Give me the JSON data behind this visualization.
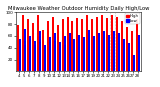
{
  "title": "Milwaukee Weather Outdoor Humidity Daily High/Low",
  "title_fontsize": 3.8,
  "high_values": [
    78,
    95,
    88,
    82,
    95,
    70,
    85,
    92,
    78,
    88,
    92,
    85,
    90,
    88,
    95,
    88,
    92,
    95,
    90,
    95,
    92,
    85,
    75,
    68,
    88
  ],
  "low_values": [
    55,
    72,
    60,
    52,
    68,
    45,
    58,
    65,
    50,
    60,
    65,
    55,
    62,
    58,
    70,
    60,
    65,
    68,
    62,
    68,
    65,
    55,
    48,
    28,
    62
  ],
  "xlabels": [
    "4",
    "5",
    "6",
    "7",
    "8",
    "9",
    "10",
    "11",
    "12",
    "13",
    "14",
    "15",
    "16",
    "17",
    "18",
    "19",
    "20",
    "21",
    "22",
    "23",
    "24",
    "25",
    "26",
    "27",
    "28"
  ],
  "high_color": "#ff0000",
  "low_color": "#0000ff",
  "bg_color": "#ffffff",
  "ylim": [
    0,
    100
  ],
  "yticks": [
    20,
    40,
    60,
    80,
    100
  ],
  "bar_width": 0.4,
  "legend_high": "High",
  "legend_low": "Low",
  "tick_fontsize": 3.0,
  "xlabel_fontsize": 2.8
}
